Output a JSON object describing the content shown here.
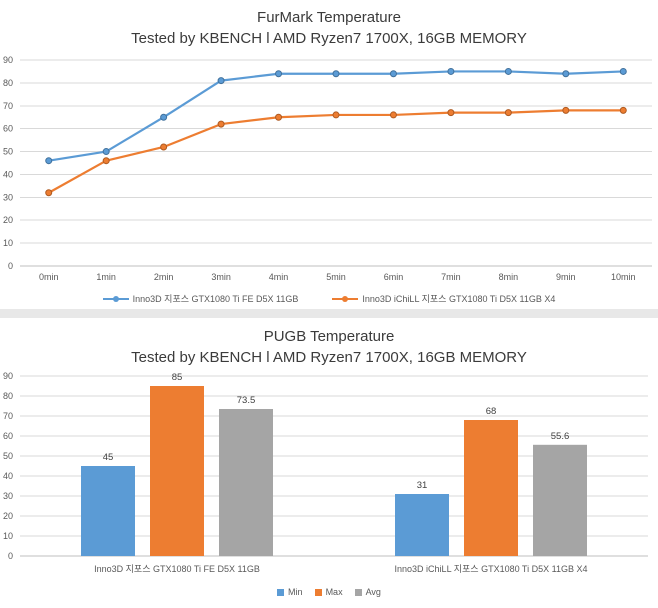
{
  "colors": {
    "blue": "#5B9BD5",
    "blue_edge": "#41719C",
    "orange": "#ED7D31",
    "orange_edge": "#AE5A21",
    "gray": "#A5A5A5",
    "gridline": "#D9D9D9",
    "axis_line": "#BFBFBF",
    "axis_text": "#595959",
    "value_label_text": "#3F3F3F",
    "title_text": "#3B3B3B",
    "divider": "#E8E8E8"
  },
  "chart_data": [
    {
      "type": "line",
      "title": "FurMark Temperature",
      "subtitle": "Tested by KBENCH l AMD Ryzen7 1700X, 16GB MEMORY",
      "x": [
        "0min",
        "1min",
        "2min",
        "3min",
        "4min",
        "5min",
        "6min",
        "7min",
        "8min",
        "9min",
        "10min"
      ],
      "series": [
        {
          "name": "Inno3D 지포스 GTX1080 Ti FE D5X 11GB",
          "color": "#5B9BD5",
          "marker_edge": "#41719C",
          "values": [
            46,
            50,
            65,
            81,
            84,
            84,
            84,
            85,
            85,
            84,
            85
          ]
        },
        {
          "name": "Inno3D iChiLL 지포스 GTX1080 Ti D5X 11GB X4",
          "color": "#ED7D31",
          "marker_edge": "#AE5A21",
          "values": [
            32,
            46,
            52,
            62,
            65,
            66,
            66,
            67,
            67,
            68,
            68
          ]
        }
      ],
      "xlabel": "",
      "ylabel": "",
      "ylim": [
        0,
        90
      ],
      "ytick_step": 10,
      "grid": true,
      "legend_position": "bottom",
      "marker": "circle"
    },
    {
      "type": "bar",
      "title": "PUGB Temperature",
      "subtitle": "Tested by KBENCH l AMD Ryzen7 1700X, 16GB MEMORY",
      "categories": [
        "Inno3D 지포스 GTX1080 Ti FE D5X 11GB",
        "Inno3D iChiLL 지포스 GTX1080 Ti D5X 11GB X4"
      ],
      "series": [
        {
          "name": "Min",
          "color": "#5B9BD5",
          "values": [
            45,
            31
          ]
        },
        {
          "name": "Max",
          "color": "#ED7D31",
          "values": [
            85,
            68
          ]
        },
        {
          "name": "Avg",
          "color": "#A5A5A5",
          "values": [
            73.5,
            55.6
          ]
        }
      ],
      "value_labels": [
        [
          "45",
          "85",
          "73.5"
        ],
        [
          "31",
          "68",
          "55.6"
        ]
      ],
      "xlabel": "",
      "ylabel": "",
      "ylim": [
        0,
        90
      ],
      "ytick_step": 10,
      "grid": true,
      "legend_position": "bottom"
    }
  ]
}
